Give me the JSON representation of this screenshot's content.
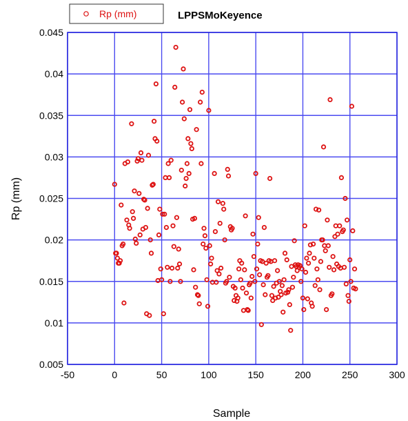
{
  "chart_data": {
    "type": "scatter",
    "title": "LPPSMoKeyence",
    "xlabel": "Sample",
    "ylabel": "Rp (mm)",
    "xlim": [
      -50,
      300
    ],
    "ylim": [
      0.005,
      0.045
    ],
    "xticks": [
      "-50",
      "0",
      "50",
      "100",
      "150",
      "200",
      "250",
      "300"
    ],
    "yticks": [
      "0.005",
      "0.01",
      "0.015",
      "0.02",
      "0.025",
      "0.03",
      "0.035",
      "0.04",
      "0.045"
    ],
    "grid": true,
    "legend": {
      "position": "top-left",
      "entries": [
        "Rp (mm)"
      ]
    },
    "colors": {
      "marker": "#dd1111",
      "grid": "#4a4af0",
      "axis": "#2222dd"
    },
    "series": [
      {
        "name": "Rp (mm)",
        "points": [
          [
            0,
            0.0267
          ],
          [
            1,
            0.0184
          ],
          [
            2,
            0.0184
          ],
          [
            3,
            0.0178
          ],
          [
            4,
            0.0172
          ],
          [
            5,
            0.0172
          ],
          [
            6,
            0.0175
          ],
          [
            7,
            0.0242
          ],
          [
            8,
            0.0193
          ],
          [
            9,
            0.0195
          ],
          [
            10,
            0.0124
          ],
          [
            11,
            0.0292
          ],
          [
            13,
            0.0224
          ],
          [
            14,
            0.0294
          ],
          [
            15,
            0.0218
          ],
          [
            16,
            0.0214
          ],
          [
            18,
            0.034
          ],
          [
            19,
            0.0234
          ],
          [
            20,
            0.0226
          ],
          [
            21,
            0.0259
          ],
          [
            22,
            0.0201
          ],
          [
            23,
            0.0196
          ],
          [
            24,
            0.0295
          ],
          [
            25,
            0.0298
          ],
          [
            26,
            0.0256
          ],
          [
            27,
            0.0206
          ],
          [
            28,
            0.0305
          ],
          [
            29,
            0.0296
          ],
          [
            30,
            0.0213
          ],
          [
            31,
            0.0249
          ],
          [
            32,
            0.0248
          ],
          [
            33,
            0.0215
          ],
          [
            34,
            0.0111
          ],
          [
            35,
            0.0238
          ],
          [
            36,
            0.0302
          ],
          [
            37,
            0.0109
          ],
          [
            38,
            0.02
          ],
          [
            39,
            0.0184
          ],
          [
            40,
            0.0266
          ],
          [
            41,
            0.0267
          ],
          [
            42,
            0.0343
          ],
          [
            43,
            0.0322
          ],
          [
            44,
            0.0388
          ],
          [
            45,
            0.0319
          ],
          [
            46,
            0.0151
          ],
          [
            47,
            0.0206
          ],
          [
            48,
            0.0237
          ],
          [
            49,
            0.0165
          ],
          [
            50,
            0.0152
          ],
          [
            51,
            0.0231
          ],
          [
            52,
            0.0111
          ],
          [
            53,
            0.0231
          ],
          [
            54,
            0.0275
          ],
          [
            55,
            0.0215
          ],
          [
            56,
            0.0167
          ],
          [
            57,
            0.0292
          ],
          [
            58,
            0.0275
          ],
          [
            59,
            0.015
          ],
          [
            60,
            0.0296
          ],
          [
            61,
            0.0166
          ],
          [
            62,
            0.0217
          ],
          [
            63,
            0.0192
          ],
          [
            64,
            0.0384
          ],
          [
            65,
            0.0432
          ],
          [
            66,
            0.0227
          ],
          [
            67,
            0.0166
          ],
          [
            68,
            0.0189
          ],
          [
            69,
            0.0171
          ],
          [
            70,
            0.015
          ],
          [
            71,
            0.0284
          ],
          [
            72,
            0.0366
          ],
          [
            73,
            0.0406
          ],
          [
            74,
            0.0346
          ],
          [
            75,
            0.0265
          ],
          [
            76,
            0.0274
          ],
          [
            77,
            0.0292
          ],
          [
            78,
            0.0322
          ],
          [
            79,
            0.028
          ],
          [
            80,
            0.0357
          ],
          [
            81,
            0.0316
          ],
          [
            82,
            0.031
          ],
          [
            83,
            0.0225
          ],
          [
            84,
            0.0164
          ],
          [
            85,
            0.0226
          ],
          [
            86,
            0.0143
          ],
          [
            87,
            0.0333
          ],
          [
            88,
            0.0134
          ],
          [
            89,
            0.0133
          ],
          [
            90,
            0.0123
          ],
          [
            91,
            0.0366
          ],
          [
            92,
            0.0292
          ],
          [
            93,
            0.0378
          ],
          [
            94,
            0.0195
          ],
          [
            95,
            0.0214
          ],
          [
            96,
            0.0205
          ],
          [
            97,
            0.019
          ],
          [
            98,
            0.0152
          ],
          [
            99,
            0.012
          ],
          [
            100,
            0.0356
          ],
          [
            101,
            0.0193
          ],
          [
            102,
            0.0171
          ],
          [
            103,
            0.0178
          ],
          [
            104,
            0.0149
          ],
          [
            106,
            0.028
          ],
          [
            107,
            0.021
          ],
          [
            108,
            0.0149
          ],
          [
            109,
            0.0163
          ],
          [
            110,
            0.0246
          ],
          [
            111,
            0.0159
          ],
          [
            112,
            0.022
          ],
          [
            113,
            0.0166
          ],
          [
            115,
            0.0244
          ],
          [
            116,
            0.0237
          ],
          [
            117,
            0.02
          ],
          [
            118,
            0.0148
          ],
          [
            119,
            0.015
          ],
          [
            120,
            0.0285
          ],
          [
            121,
            0.0277
          ],
          [
            122,
            0.0155
          ],
          [
            123,
            0.0216
          ],
          [
            124,
            0.0212
          ],
          [
            125,
            0.0214
          ],
          [
            126,
            0.0144
          ],
          [
            127,
            0.0127
          ],
          [
            128,
            0.0142
          ],
          [
            129,
            0.0133
          ],
          [
            130,
            0.0126
          ],
          [
            131,
            0.013
          ],
          [
            132,
            0.0165
          ],
          [
            133,
            0.0175
          ],
          [
            134,
            0.0152
          ],
          [
            135,
            0.0172
          ],
          [
            136,
            0.0142
          ],
          [
            137,
            0.0115
          ],
          [
            138,
            0.0164
          ],
          [
            139,
            0.0229
          ],
          [
            140,
            0.0136
          ],
          [
            141,
            0.0116
          ],
          [
            142,
            0.0115
          ],
          [
            143,
            0.0146
          ],
          [
            144,
            0.0148
          ],
          [
            145,
            0.013
          ],
          [
            146,
            0.0156
          ],
          [
            147,
            0.0207
          ],
          [
            148,
            0.018
          ],
          [
            149,
            0.015
          ],
          [
            150,
            0.028
          ],
          [
            151,
            0.0165
          ],
          [
            152,
            0.0195
          ],
          [
            153,
            0.0227
          ],
          [
            154,
            0.0158
          ],
          [
            155,
            0.0175
          ],
          [
            156,
            0.0098
          ],
          [
            157,
            0.0174
          ],
          [
            158,
            0.0146
          ],
          [
            159,
            0.0215
          ],
          [
            160,
            0.0134
          ],
          [
            161,
            0.0172
          ],
          [
            162,
            0.0155
          ],
          [
            163,
            0.0157
          ],
          [
            164,
            0.0175
          ],
          [
            165,
            0.0274
          ],
          [
            166,
            0.0174
          ],
          [
            167,
            0.0133
          ],
          [
            168,
            0.0127
          ],
          [
            169,
            0.0144
          ],
          [
            170,
            0.0175
          ],
          [
            171,
            0.013
          ],
          [
            172,
            0.0148
          ],
          [
            173,
            0.0163
          ],
          [
            174,
            0.0131
          ],
          [
            175,
            0.015
          ],
          [
            176,
            0.0138
          ],
          [
            177,
            0.0134
          ],
          [
            178,
            0.0145
          ],
          [
            179,
            0.0113
          ],
          [
            180,
            0.0152
          ],
          [
            181,
            0.0184
          ],
          [
            182,
            0.0136
          ],
          [
            183,
            0.0176
          ],
          [
            184,
            0.0137
          ],
          [
            185,
            0.014
          ],
          [
            186,
            0.0122
          ],
          [
            187,
            0.0091
          ],
          [
            188,
            0.0168
          ],
          [
            189,
            0.0143
          ],
          [
            190,
            0.0155
          ],
          [
            191,
            0.0199
          ],
          [
            192,
            0.017
          ],
          [
            193,
            0.0168
          ],
          [
            194,
            0.0163
          ],
          [
            195,
            0.017
          ],
          [
            196,
            0.0167
          ],
          [
            197,
            0.0169
          ],
          [
            198,
            0.015
          ],
          [
            199,
            0.0165
          ],
          [
            200,
            0.013
          ],
          [
            201,
            0.0116
          ],
          [
            202,
            0.0217
          ],
          [
            203,
            0.0161
          ],
          [
            204,
            0.0178
          ],
          [
            205,
            0.0129
          ],
          [
            206,
            0.0172
          ],
          [
            207,
            0.0184
          ],
          [
            208,
            0.0194
          ],
          [
            209,
            0.0124
          ],
          [
            210,
            0.012
          ],
          [
            211,
            0.0195
          ],
          [
            212,
            0.0178
          ],
          [
            213,
            0.0145
          ],
          [
            214,
            0.0237
          ],
          [
            215,
            0.0165
          ],
          [
            216,
            0.0152
          ],
          [
            217,
            0.0236
          ],
          [
            218,
            0.014
          ],
          [
            219,
            0.0174
          ],
          [
            220,
            0.02
          ],
          [
            221,
            0.02
          ],
          [
            222,
            0.0312
          ],
          [
            223,
            0.0193
          ],
          [
            224,
            0.0187
          ],
          [
            225,
            0.0116
          ],
          [
            226,
            0.0224
          ],
          [
            227,
            0.0193
          ],
          [
            228,
            0.0167
          ],
          [
            229,
            0.0369
          ],
          [
            230,
            0.0133
          ],
          [
            231,
            0.0135
          ],
          [
            232,
            0.018
          ],
          [
            233,
            0.0164
          ],
          [
            234,
            0.0204
          ],
          [
            235,
            0.0217
          ],
          [
            236,
            0.0171
          ],
          [
            237,
            0.0207
          ],
          [
            238,
            0.0168
          ],
          [
            239,
            0.0217
          ],
          [
            240,
            0.0166
          ],
          [
            241,
            0.0275
          ],
          [
            242,
            0.021
          ],
          [
            243,
            0.0212
          ],
          [
            244,
            0.0167
          ],
          [
            245,
            0.025
          ],
          [
            246,
            0.0147
          ],
          [
            247,
            0.0224
          ],
          [
            248,
            0.0133
          ],
          [
            249,
            0.0126
          ],
          [
            250,
            0.0176
          ],
          [
            251,
            0.015
          ],
          [
            252,
            0.0361
          ],
          [
            253,
            0.0211
          ],
          [
            254,
            0.0142
          ],
          [
            255,
            0.0165
          ],
          [
            256,
            0.0141
          ]
        ]
      }
    ]
  }
}
